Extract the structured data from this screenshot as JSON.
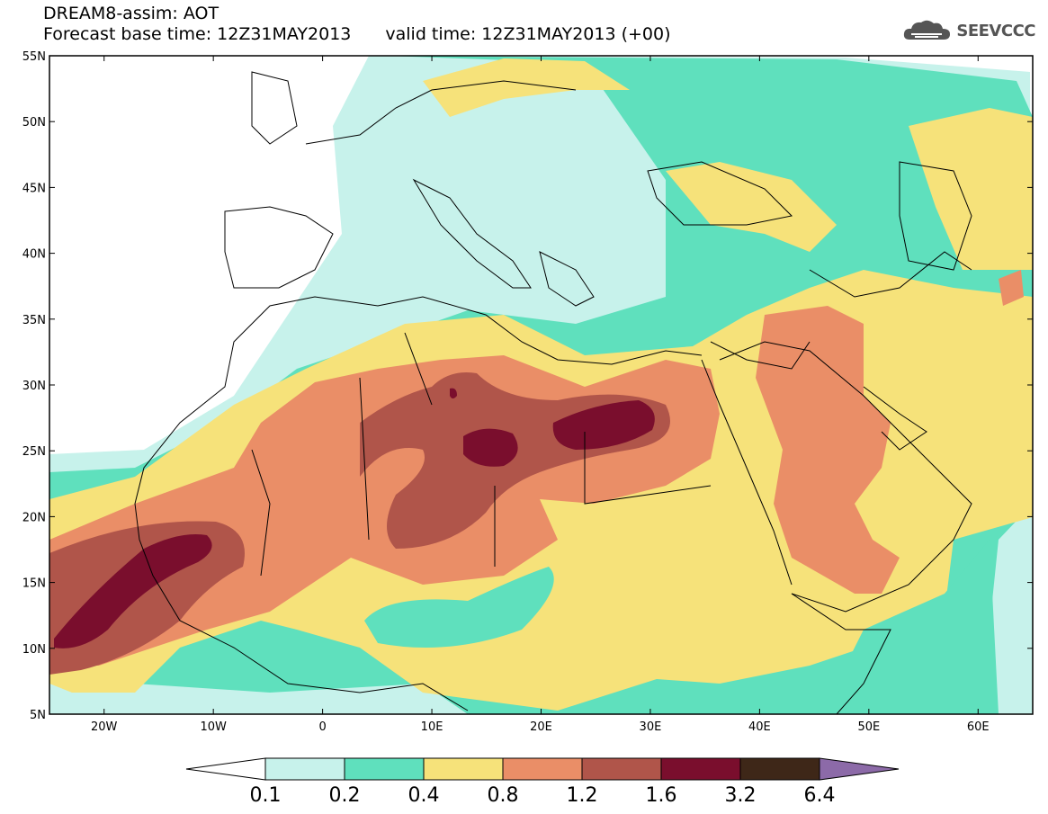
{
  "header": {
    "title": "DREAM8-assim: AOT",
    "base_time": "Forecast base time: 12Z31MAY2013",
    "valid_time": "valid time: 12Z31MAY2013 (+00)"
  },
  "logo": {
    "text": "SEEVCCC",
    "icon": "cloud-icon"
  },
  "map": {
    "lon_range": [
      -25,
      65
    ],
    "lat_range": [
      5,
      55
    ],
    "lat_ticks": [
      "55N",
      "50N",
      "45N",
      "40N",
      "35N",
      "30N",
      "25N",
      "20N",
      "15N",
      "10N",
      "5N"
    ],
    "lon_ticks": [
      "20W",
      "10W",
      "0",
      "10E",
      "20E",
      "30E",
      "40E",
      "50E",
      "60E"
    ]
  },
  "colorbar": {
    "labels": [
      "0.1",
      "0.2",
      "0.4",
      "0.8",
      "1.2",
      "1.6",
      "3.2",
      "6.4"
    ],
    "colors": [
      "#ffffff",
      "#c7f2eb",
      "#5fe0bd",
      "#f6e27a",
      "#ea8e67",
      "#b0554a",
      "#7a0e2d",
      "#3e2718",
      "#8c6aa8"
    ]
  },
  "palette": {
    "ocean_bg": "#ffffff",
    "c01": "#c7f2eb",
    "c02": "#5fe0bd",
    "c04": "#f6e27a",
    "c08": "#ea8e67",
    "c12": "#b0554a",
    "c16": "#7a0e2d"
  }
}
